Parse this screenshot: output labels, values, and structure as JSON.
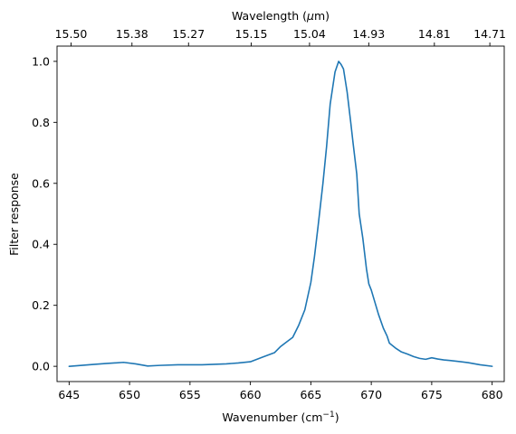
{
  "chart_data": {
    "type": "line",
    "title": "",
    "xlabel": "Wavenumber (cm",
    "xlabel_sup": "−1",
    "xlabel_suffix": ")",
    "ylabel": "Filter response",
    "top_xlabel": "Wavelength (",
    "top_xlabel_mu": "μ",
    "top_xlabel_suffix": "m)",
    "xlim": [
      644,
      681
    ],
    "ylim": [
      -0.05,
      1.05
    ],
    "x_ticks": [
      645,
      650,
      655,
      660,
      665,
      670,
      675,
      680
    ],
    "x_tick_labels": [
      "645",
      "650",
      "655",
      "660",
      "665",
      "670",
      "675",
      "680"
    ],
    "y_ticks": [
      0.0,
      0.2,
      0.4,
      0.6,
      0.8,
      1.0
    ],
    "y_tick_labels": [
      "0.0",
      "0.2",
      "0.4",
      "0.6",
      "0.8",
      "1.0"
    ],
    "top_ticks": [
      {
        "wavenumber": 645.16,
        "label": "15.50"
      },
      {
        "wavenumber": 650.2,
        "label": "15.38"
      },
      {
        "wavenumber": 654.88,
        "label": "15.27"
      },
      {
        "wavenumber": 660.07,
        "label": "15.15"
      },
      {
        "wavenumber": 664.89,
        "label": "15.04"
      },
      {
        "wavenumber": 669.79,
        "label": "14.93"
      },
      {
        "wavenumber": 675.22,
        "label": "14.81"
      },
      {
        "wavenumber": 679.81,
        "label": "14.71"
      }
    ],
    "grid": false,
    "series": [
      {
        "color": "#1f77b4",
        "x": [
          645.0,
          647.0,
          648.0,
          649.5,
          650.5,
          651.5,
          652.5,
          654.0,
          656.0,
          658.0,
          659.0,
          660.0,
          661.0,
          662.0,
          662.5,
          663.0,
          663.5,
          664.0,
          664.5,
          665.0,
          665.3,
          665.6,
          666.0,
          666.3,
          666.6,
          667.0,
          667.3,
          667.5,
          667.7,
          668.0,
          668.3,
          668.5,
          668.8,
          669.0,
          669.3,
          669.6,
          669.8,
          670.0,
          670.3,
          670.6,
          671.0,
          671.3,
          671.5,
          672.0,
          672.5,
          673.0,
          673.5,
          674.0,
          674.5,
          675.0,
          675.5,
          676.0,
          676.5,
          677.0,
          678.0,
          679.0,
          680.0
        ],
        "y": [
          0.0,
          0.006,
          0.009,
          0.013,
          0.008,
          0.001,
          0.003,
          0.005,
          0.005,
          0.008,
          0.011,
          0.015,
          0.03,
          0.045,
          0.065,
          0.08,
          0.095,
          0.135,
          0.185,
          0.275,
          0.36,
          0.46,
          0.6,
          0.72,
          0.86,
          0.965,
          1.0,
          0.99,
          0.975,
          0.9,
          0.8,
          0.73,
          0.63,
          0.5,
          0.42,
          0.32,
          0.27,
          0.25,
          0.21,
          0.17,
          0.125,
          0.1,
          0.076,
          0.06,
          0.047,
          0.04,
          0.032,
          0.026,
          0.023,
          0.028,
          0.024,
          0.021,
          0.019,
          0.017,
          0.012,
          0.005,
          0.0
        ]
      }
    ]
  }
}
